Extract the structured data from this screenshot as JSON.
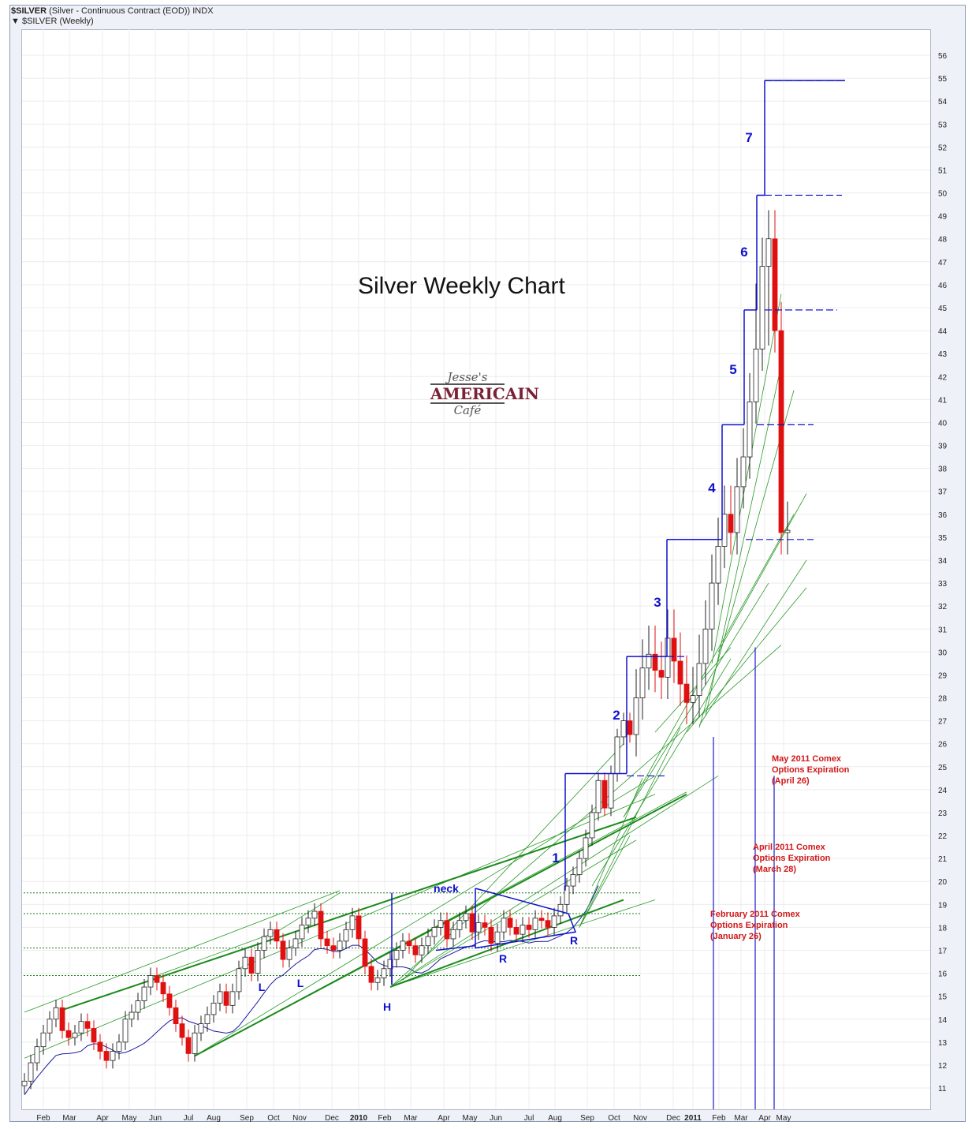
{
  "header": {
    "symbol": "$SILVER",
    "description": "(Silver - Continuous Contract (EOD)) INDX",
    "legend": "$SILVER (Weekly)"
  },
  "chart_title": "Silver Weekly Chart",
  "logo": {
    "line1": "Jesse's",
    "line2": "AMERICAIN",
    "line3": "Café"
  },
  "annotations": [
    {
      "lines": [
        "May 2011 Comex",
        "Options Expiration",
        "(April 26)"
      ]
    },
    {
      "lines": [
        "April 2011 Comex",
        "Options Expiration",
        "(March 28)"
      ]
    },
    {
      "lines": [
        "February 2011 Comex",
        "Options Expiration",
        "(January 26)"
      ]
    }
  ],
  "wave_labels": [
    "1",
    "2",
    "3",
    "4",
    "5",
    "6",
    "7"
  ],
  "pattern_labels": [
    "neck",
    "L",
    "L",
    "H",
    "R",
    "R"
  ],
  "colors": {
    "up": "#ffffff",
    "down": "#e01010",
    "trend": "#2a9a2a",
    "ma": "#1a1aa0",
    "blue": "#1010cc",
    "annotation": "#d01818"
  },
  "chart_data": {
    "type": "candlestick",
    "yaxis_side": "right",
    "ylim": [
      10.2,
      56.5
    ],
    "y_ticks": [
      11,
      12,
      13,
      14,
      15,
      16,
      17,
      18,
      19,
      20,
      21,
      22,
      23,
      24,
      25,
      26,
      27,
      28,
      29,
      30,
      31,
      32,
      33,
      34,
      35,
      36,
      37,
      38,
      39,
      40,
      41,
      42,
      43,
      44,
      45,
      46,
      47,
      48,
      49,
      50,
      51,
      52,
      53,
      54,
      55,
      56
    ],
    "x_tick_labels": [
      "Feb",
      "Mar",
      "Apr",
      "May",
      "Jun",
      "Jul",
      "Aug",
      "Sep",
      "Oct",
      "Nov",
      "Dec",
      "2010",
      "Feb",
      "Mar",
      "Apr",
      "May",
      "Jun",
      "Jul",
      "Aug",
      "Sep",
      "Oct",
      "Nov",
      "Dec",
      "2011",
      "Feb",
      "Mar",
      "Apr",
      "May"
    ],
    "bold_x_ticks": [
      "2010",
      "2011"
    ],
    "close": [
      11.3,
      12.1,
      12.8,
      13.4,
      14.0,
      14.5,
      13.5,
      13.2,
      13.4,
      13.9,
      13.6,
      13.0,
      12.6,
      12.2,
      12.6,
      13.0,
      14.0,
      14.3,
      14.8,
      15.4,
      15.9,
      15.6,
      15.1,
      14.5,
      13.8,
      13.2,
      12.5,
      13.4,
      13.8,
      14.2,
      14.7,
      15.2,
      14.6,
      15.2,
      16.2,
      16.7,
      16.0,
      17.0,
      17.6,
      17.9,
      17.4,
      16.6,
      17.1,
      17.5,
      18.1,
      18.4,
      18.7,
      17.5,
      17.2,
      17.0,
      17.4,
      17.9,
      18.5,
      17.5,
      16.3,
      15.6,
      15.8,
      16.2,
      16.6,
      17.0,
      17.4,
      17.2,
      16.8,
      17.2,
      17.6,
      18.0,
      18.3,
      17.5,
      17.9,
      18.3,
      18.6,
      17.8,
      18.2,
      18.0,
      17.3,
      17.8,
      18.4,
      18.0,
      17.7,
      18.1,
      17.9,
      18.4,
      18.3,
      18.0,
      18.5,
      19.0,
      19.8,
      20.3,
      21.0,
      21.9,
      23.0,
      24.4,
      23.2,
      24.7,
      26.3,
      27.0,
      26.4,
      28.0,
      29.3,
      29.9,
      29.2,
      28.9,
      30.6,
      29.6,
      28.6,
      27.8,
      28.1,
      29.5,
      31.0,
      33.0,
      34.6,
      36.0,
      35.2,
      37.2,
      38.5,
      40.9,
      43.2,
      46.8,
      48.0,
      44.0,
      35.2,
      35.3
    ],
    "ma_series_name": "",
    "wave_levels": [
      {
        "label": "1",
        "from": 19.6,
        "to": 24.7
      },
      {
        "label": "2",
        "from": 24.7,
        "to": 29.8
      },
      {
        "label": "3",
        "from": 29.8,
        "to": 34.9
      },
      {
        "label": "4",
        "from": 34.9,
        "to": 39.9
      },
      {
        "label": "5",
        "from": 39.9,
        "to": 44.9
      },
      {
        "label": "6",
        "from": 44.9,
        "to": 49.9
      },
      {
        "label": "7",
        "from": 49.9,
        "to": 54.9
      }
    ],
    "horizontal_support_levels": [
      19.5,
      18.6,
      17.1,
      15.9
    ],
    "grid": true
  }
}
